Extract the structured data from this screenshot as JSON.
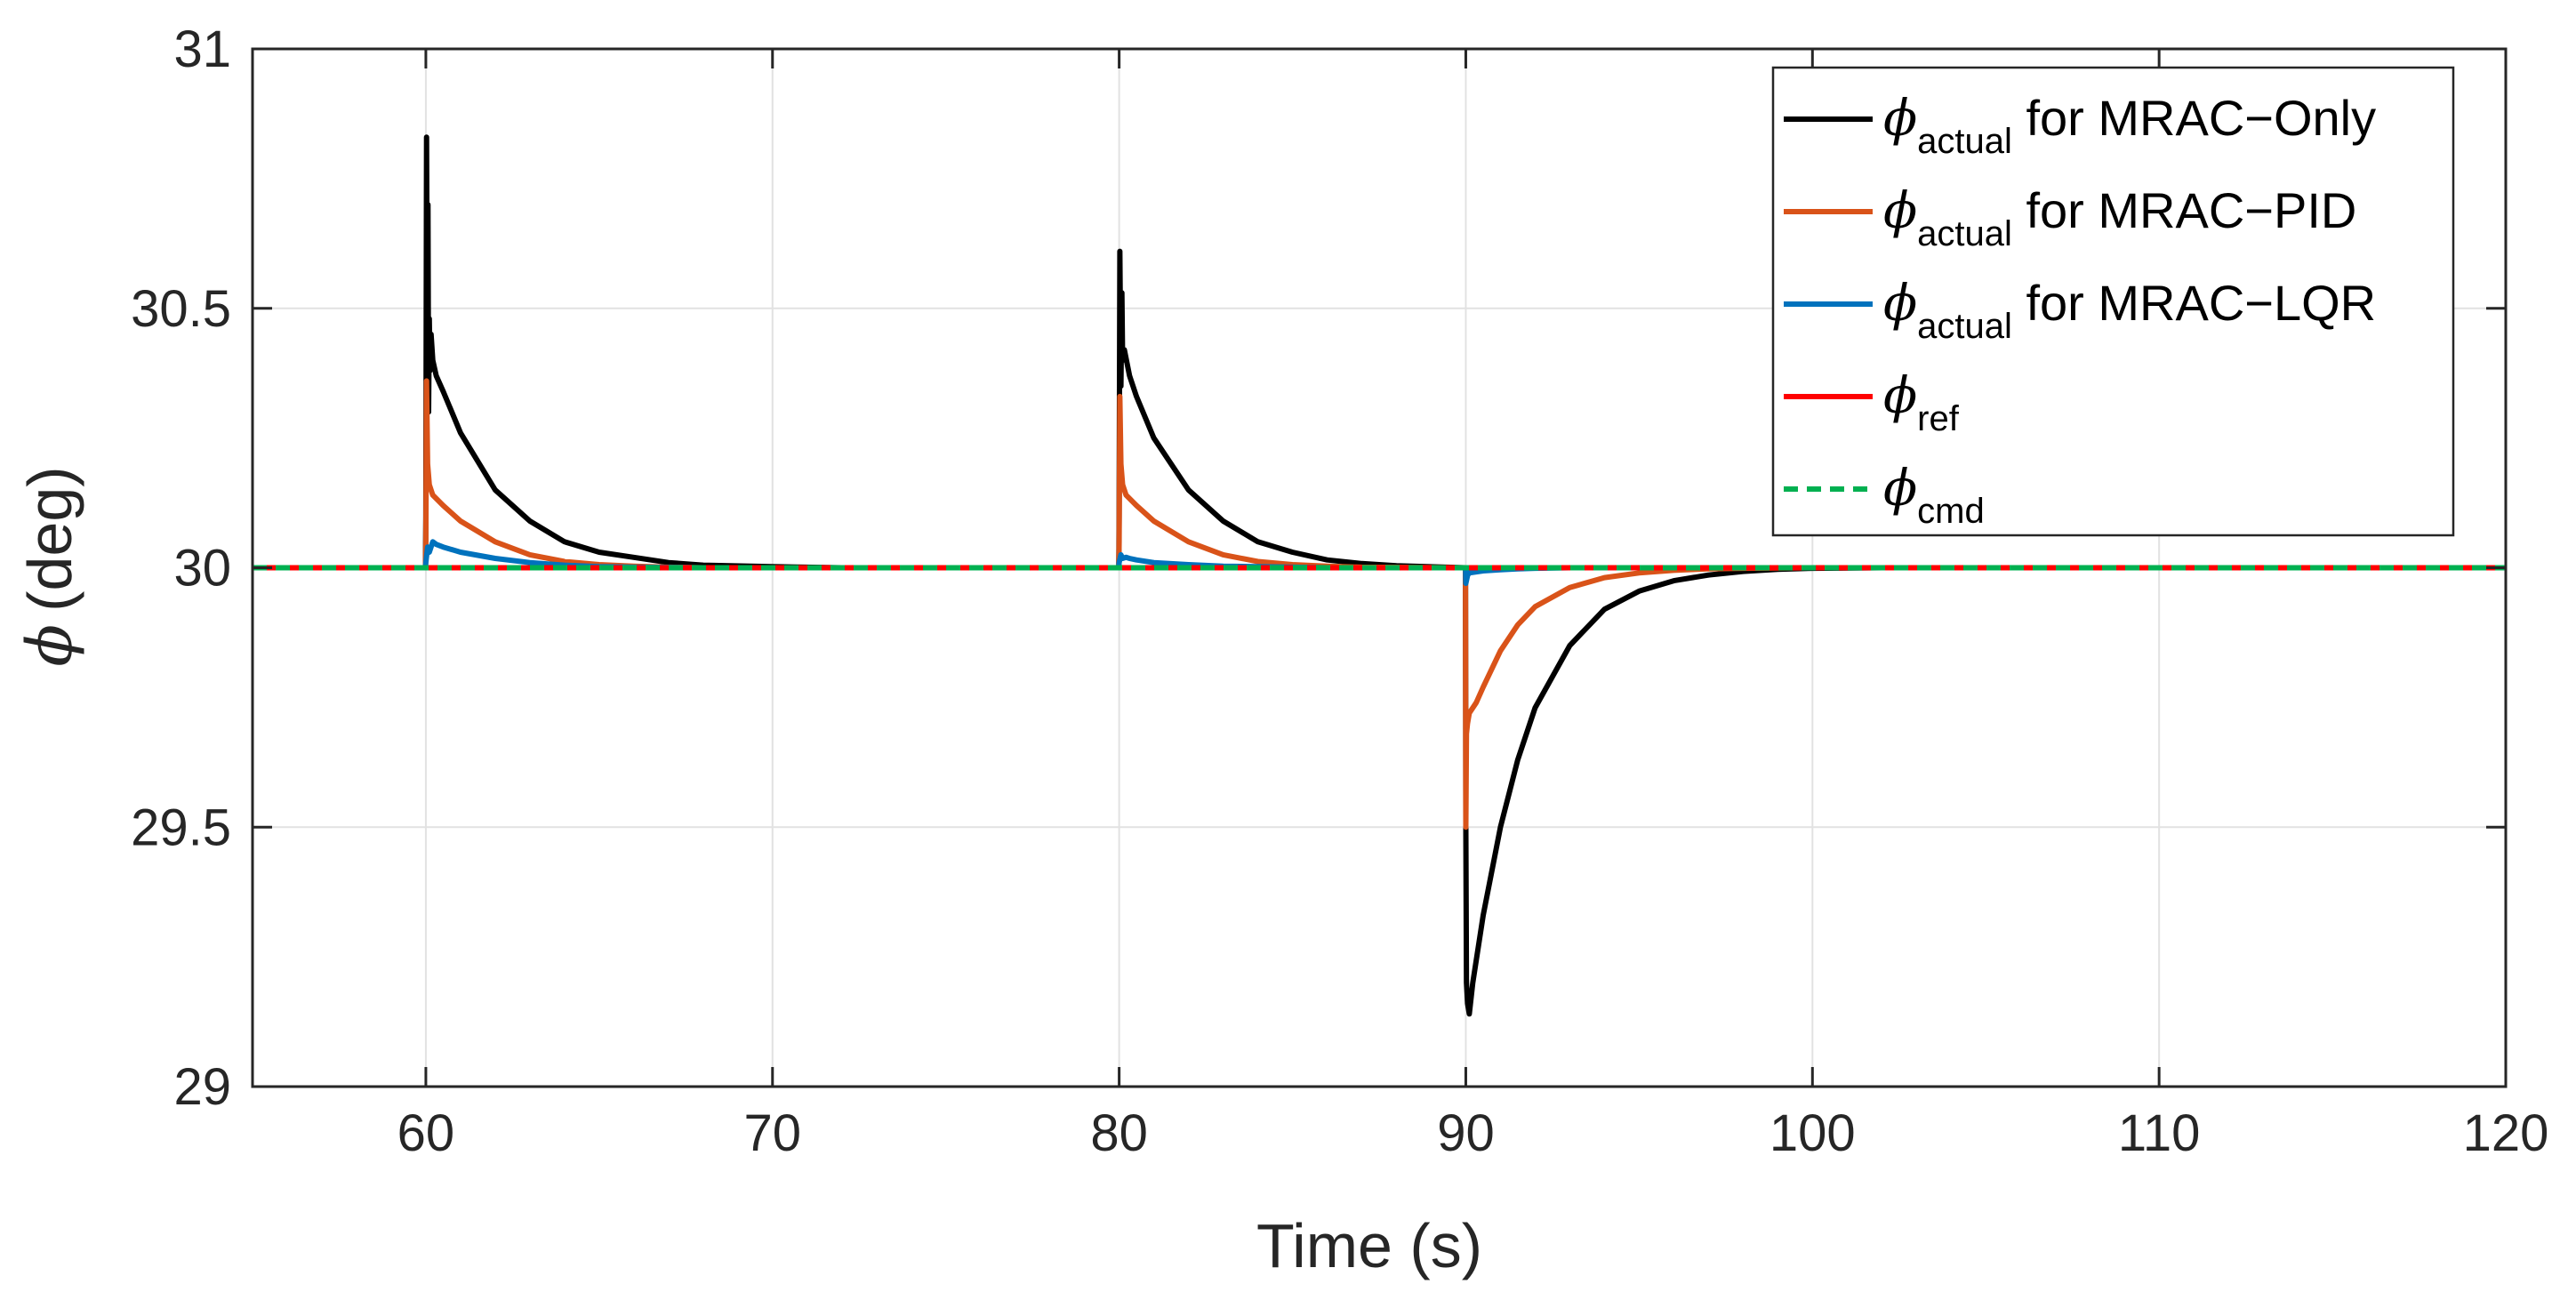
{
  "chart_data": {
    "type": "line",
    "title": "",
    "xlabel": "Time (s)",
    "ylabel": {
      "symbol": "ϕ",
      "unit": "(deg)"
    },
    "xlim": [
      55,
      120
    ],
    "ylim": [
      29,
      31
    ],
    "xticks": [
      60,
      70,
      80,
      90,
      100,
      110,
      120
    ],
    "xtick_labels": [
      "60",
      "70",
      "80",
      "90",
      "100",
      "110",
      "120"
    ],
    "yticks": [
      29,
      29.5,
      30,
      30.5,
      31
    ],
    "ytick_labels": [
      "29",
      "29.5",
      "30",
      "30.5",
      "31"
    ],
    "grid": true,
    "legend_position": "top-right",
    "series": [
      {
        "name": "ϕactual for MRAC−Only",
        "legend": {
          "symbol": "ϕ",
          "sub": "actual",
          "text": " for MRAC−Only"
        },
        "color": "#000000",
        "style": "solid",
        "x": [
          55,
          59.99,
          60.0,
          60.02,
          60.04,
          60.06,
          60.08,
          60.1,
          60.12,
          60.15,
          60.2,
          60.3,
          60.5,
          61,
          62,
          63,
          64,
          65,
          66,
          67,
          68,
          70,
          72,
          75,
          79.99,
          80.0,
          80.02,
          80.05,
          80.08,
          80.1,
          80.15,
          80.3,
          80.5,
          81,
          82,
          83,
          84,
          85,
          86,
          87,
          88,
          89.99,
          90.0,
          90.02,
          90.05,
          90.1,
          90.2,
          90.5,
          91,
          91.5,
          92,
          93,
          94,
          95,
          96,
          97,
          98,
          99,
          100,
          102,
          105,
          120
        ],
        "y": [
          30,
          30,
          30.1,
          30.83,
          30.45,
          30.7,
          30.3,
          30.48,
          30.38,
          30.45,
          30.4,
          30.37,
          30.34,
          30.26,
          30.15,
          30.09,
          30.05,
          30.03,
          30.02,
          30.01,
          30.005,
          30.002,
          30,
          30,
          30,
          30.1,
          30.61,
          30.35,
          30.53,
          30.4,
          30.42,
          30.37,
          30.33,
          30.25,
          30.15,
          30.09,
          30.05,
          30.03,
          30.015,
          30.008,
          30.004,
          30,
          29.5,
          29.2,
          29.16,
          29.14,
          29.2,
          29.33,
          29.5,
          29.63,
          29.73,
          29.85,
          29.92,
          29.955,
          29.975,
          29.986,
          29.993,
          29.997,
          29.999,
          30,
          30,
          30
        ]
      },
      {
        "name": "ϕactual for MRAC−PID",
        "legend": {
          "symbol": "ϕ",
          "sub": "actual",
          "text": " for MRAC−PID"
        },
        "color": "#D95319",
        "style": "solid",
        "x": [
          55,
          59.99,
          60.0,
          60.02,
          60.05,
          60.1,
          60.2,
          60.5,
          61,
          62,
          63,
          64,
          65,
          66,
          67,
          68,
          70,
          79.99,
          80.0,
          80.02,
          80.05,
          80.1,
          80.2,
          80.5,
          81,
          82,
          83,
          84,
          85,
          86,
          87,
          89.99,
          90.0,
          90.02,
          90.05,
          90.1,
          90.3,
          90.5,
          91,
          91.5,
          92,
          93,
          94,
          95,
          96,
          97,
          98,
          100,
          120
        ],
        "y": [
          30,
          30,
          30.05,
          30.36,
          30.2,
          30.16,
          30.14,
          30.12,
          30.09,
          30.05,
          30.025,
          30.012,
          30.006,
          30.003,
          30.001,
          30,
          30,
          30,
          30.05,
          30.33,
          30.2,
          30.16,
          30.14,
          30.12,
          30.09,
          30.05,
          30.025,
          30.012,
          30.006,
          30.003,
          30.001,
          30,
          29.5,
          29.68,
          29.7,
          29.72,
          29.74,
          29.77,
          29.84,
          29.89,
          29.925,
          29.962,
          29.981,
          29.99,
          29.995,
          29.998,
          29.999,
          30,
          30
        ]
      },
      {
        "name": "ϕactual for MRAC−LQR",
        "legend": {
          "symbol": "ϕ",
          "sub": "actual",
          "text": " for MRAC−LQR"
        },
        "color": "#0072BD",
        "style": "solid",
        "x": [
          55,
          59.99,
          60.0,
          60.05,
          60.1,
          60.2,
          60.3,
          60.5,
          61,
          62,
          63,
          64,
          65,
          66,
          68,
          79.99,
          80.0,
          80.05,
          80.1,
          80.2,
          80.3,
          80.5,
          81,
          82,
          83,
          84,
          85,
          86,
          89.99,
          90.0,
          90.05,
          90.1,
          90.3,
          90.5,
          91,
          91.5,
          92,
          93,
          94,
          120
        ],
        "y": [
          30,
          30,
          30.01,
          30.04,
          30.03,
          30.05,
          30.045,
          30.04,
          30.03,
          30.018,
          30.01,
          30.005,
          30.002,
          30.001,
          30,
          30,
          30.01,
          30.025,
          30.018,
          30.02,
          30.018,
          30.015,
          30.01,
          30.006,
          30.003,
          30.002,
          30.001,
          30,
          30,
          29.97,
          29.985,
          29.99,
          29.992,
          29.994,
          29.996,
          29.998,
          29.999,
          30,
          30,
          30
        ]
      },
      {
        "name": "ϕref",
        "legend": {
          "symbol": "ϕ",
          "sub": "ref",
          "text": ""
        },
        "color": "#FF0000",
        "style": "solid",
        "x": [
          55,
          120
        ],
        "y": [
          30,
          30
        ]
      },
      {
        "name": "ϕcmd",
        "legend": {
          "symbol": "ϕ",
          "sub": "cmd",
          "text": ""
        },
        "color": "#00B050",
        "style": "dashed",
        "x": [
          55,
          120
        ],
        "y": [
          30,
          30
        ]
      }
    ]
  }
}
